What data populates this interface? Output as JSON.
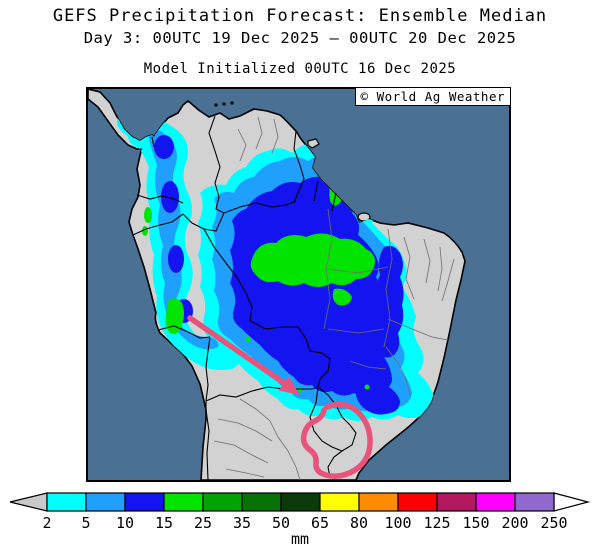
{
  "header": {
    "title": "GEFS Precipitation Forecast: Ensemble Median",
    "date_line": "Day 3: 00UTC 19 Dec 2025 — 00UTC 20 Dec 2025",
    "init_line": "Model Initialized 00UTC 16 Dec 2025"
  },
  "map": {
    "credit": "© World Ag Weather",
    "region": "South America",
    "ocean_color": "#4A7094",
    "land_color": "#D2D2D2",
    "coast_color": "#000000",
    "state_border_color": "#6E6E6E",
    "annotation_color": "#E8537C",
    "annotations": [
      "thick pink arrow pointing southeast from the Peru Andes toward Bolivia / western Brazil",
      "hand-drawn pink loop circling far southern Brazil (dry area)"
    ]
  },
  "colorbar": {
    "units": "mm",
    "tick_labels": [
      "2",
      "5",
      "10",
      "15",
      "25",
      "35",
      "50",
      "65",
      "80",
      "100",
      "125",
      "150",
      "200",
      "250"
    ],
    "segment_colors": [
      "#00FFFF",
      "#1FA0FF",
      "#1414F0",
      "#00E400",
      "#00A300",
      "#077307",
      "#0A3A0A",
      "#FFFF00",
      "#FF8C00",
      "#FF0000",
      "#B2175F",
      "#FF00FF",
      "#9168CE"
    ],
    "below_min_color": "#C9C9C9",
    "above_max_color": "#FFFFFF"
  },
  "chart_data": {
    "type": "heatmap",
    "title": "GEFS Precipitation Forecast: Ensemble Median",
    "subtitle": "Day 3: 00UTC 19 Dec 2025 — 00UTC 20 Dec 2025",
    "annotation": "Model Initialized 00UTC 16 Dec 2025",
    "legend_units": "mm",
    "scale_breaks_mm": [
      2,
      5,
      10,
      15,
      25,
      35,
      50,
      65,
      80,
      100,
      125,
      150,
      200,
      250
    ],
    "scale_colors": [
      "#00FFFF",
      "#1FA0FF",
      "#1414F0",
      "#00E400",
      "#00A300",
      "#077307",
      "#0A3A0A",
      "#FFFF00",
      "#FF8C00",
      "#FF0000",
      "#B2175F",
      "#FF00FF",
      "#9168CE"
    ],
    "legend_position": "bottom",
    "values_read_from_map": [
      {
        "area": "Central Amazon basin (S Amazonas / N Mato Grosso / Rondonia)",
        "value_mm": "15-25"
      },
      {
        "area": "Most of interior Amazon / central Brazil",
        "value_mm": "10-15"
      },
      {
        "area": "Western Colombia and Andes slopes",
        "value_mm": "5-15"
      },
      {
        "area": "Southeast Peru Andes strip",
        "value_mm": "15-25"
      },
      {
        "area": "Guyana / Suriname coast",
        "value_mm": "10-25"
      },
      {
        "area": "Southeast Brazil coast pocket",
        "value_mm": "10-15"
      },
      {
        "area": "Northeast Brazil bulge, Venezuela llanos, Chile, Argentina",
        "value_mm": "<2"
      },
      {
        "area": "Far southern Brazil (circled in pink)",
        "value_mm": "<2"
      }
    ]
  }
}
